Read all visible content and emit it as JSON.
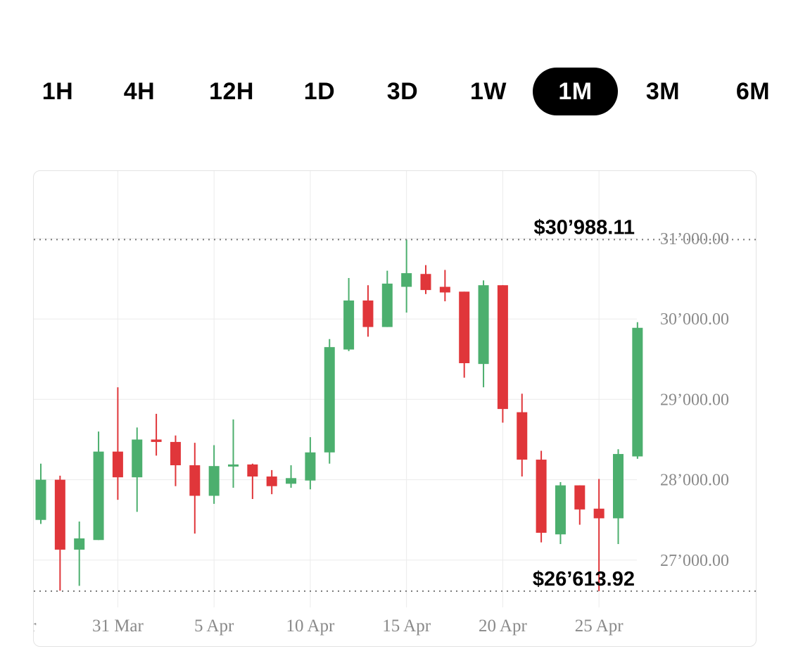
{
  "timeframes": {
    "items": [
      {
        "label": "1H",
        "active": false
      },
      {
        "label": "4H",
        "active": false
      },
      {
        "label": "12H",
        "active": false
      },
      {
        "label": "1D",
        "active": false
      },
      {
        "label": "3D",
        "active": false
      },
      {
        "label": "1W",
        "active": false
      },
      {
        "label": "1M",
        "active": true
      },
      {
        "label": "3M",
        "active": false
      },
      {
        "label": "6M",
        "active": false
      }
    ]
  },
  "colors": {
    "up": "#4caf6e",
    "down": "#e0363a",
    "grid": "#ebebeb",
    "active_tab_bg": "#000000"
  },
  "chart_data": {
    "type": "candlestick",
    "x_tick_labels": [
      "Mar",
      "31 Mar",
      "5 Apr",
      "10 Apr",
      "15 Apr",
      "20 Apr",
      "25 Apr"
    ],
    "y_tick_labels": [
      "31’000.00",
      "30’000.00",
      "29’000.00",
      "28’000.00",
      "27’000.00"
    ],
    "y_ticks": [
      31000,
      30000,
      29000,
      28000,
      27000
    ],
    "ylim": [
      26250,
      31750
    ],
    "high_label": "$30’988.11",
    "high_value": 30988.11,
    "low_label": "$26’613.92",
    "low_value": 26613.92,
    "candles": [
      {
        "date": "2023-03-27",
        "open": 27500,
        "high": 28200,
        "low": 27450,
        "close": 28000
      },
      {
        "date": "2023-03-28",
        "open": 28000,
        "high": 28050,
        "low": 26620,
        "close": 27130
      },
      {
        "date": "2023-03-29",
        "open": 27130,
        "high": 27480,
        "low": 26680,
        "close": 27270
      },
      {
        "date": "2023-03-30",
        "open": 27250,
        "high": 28600,
        "low": 27250,
        "close": 28350
      },
      {
        "date": "2023-03-31",
        "open": 28350,
        "high": 29150,
        "low": 27750,
        "close": 28030
      },
      {
        "date": "2023-04-01",
        "open": 28030,
        "high": 28650,
        "low": 27600,
        "close": 28500
      },
      {
        "date": "2023-04-02",
        "open": 28500,
        "high": 28820,
        "low": 28300,
        "close": 28470
      },
      {
        "date": "2023-04-03",
        "open": 28470,
        "high": 28550,
        "low": 27920,
        "close": 28180
      },
      {
        "date": "2023-04-04",
        "open": 28180,
        "high": 28460,
        "low": 27330,
        "close": 27800
      },
      {
        "date": "2023-04-05",
        "open": 27800,
        "high": 28430,
        "low": 27700,
        "close": 28170
      },
      {
        "date": "2023-04-06",
        "open": 28170,
        "high": 28750,
        "low": 27900,
        "close": 28190
      },
      {
        "date": "2023-04-07",
        "open": 28190,
        "high": 28200,
        "low": 27760,
        "close": 28040
      },
      {
        "date": "2023-04-08",
        "open": 28040,
        "high": 28120,
        "low": 27820,
        "close": 27920
      },
      {
        "date": "2023-04-09",
        "open": 27950,
        "high": 28180,
        "low": 27900,
        "close": 28020
      },
      {
        "date": "2023-04-10",
        "open": 27990,
        "high": 28530,
        "low": 27880,
        "close": 28340
      },
      {
        "date": "2023-04-11",
        "open": 28340,
        "high": 29750,
        "low": 28200,
        "close": 29650
      },
      {
        "date": "2023-04-12",
        "open": 29620,
        "high": 30510,
        "low": 29600,
        "close": 30230
      },
      {
        "date": "2023-04-13",
        "open": 30230,
        "high": 30420,
        "low": 29780,
        "close": 29900
      },
      {
        "date": "2023-04-14",
        "open": 29900,
        "high": 30600,
        "low": 29900,
        "close": 30440
      },
      {
        "date": "2023-04-15",
        "open": 30400,
        "high": 30988.11,
        "low": 30080,
        "close": 30570
      },
      {
        "date": "2023-04-16",
        "open": 30560,
        "high": 30670,
        "low": 30310,
        "close": 30360
      },
      {
        "date": "2023-04-17",
        "open": 30400,
        "high": 30610,
        "low": 30220,
        "close": 30330
      },
      {
        "date": "2023-04-18",
        "open": 30340,
        "high": 30340,
        "low": 29270,
        "close": 29450
      },
      {
        "date": "2023-04-19",
        "open": 29440,
        "high": 30480,
        "low": 29150,
        "close": 30420
      },
      {
        "date": "2023-04-20",
        "open": 30420,
        "high": 30420,
        "low": 28710,
        "close": 28880
      },
      {
        "date": "2023-04-21",
        "open": 28840,
        "high": 29070,
        "low": 28040,
        "close": 28250
      },
      {
        "date": "2023-04-22",
        "open": 28250,
        "high": 28360,
        "low": 27220,
        "close": 27340
      },
      {
        "date": "2023-04-23",
        "open": 27320,
        "high": 27970,
        "low": 27200,
        "close": 27930
      },
      {
        "date": "2023-04-24",
        "open": 27930,
        "high": 27930,
        "low": 27440,
        "close": 27630
      },
      {
        "date": "2023-04-25",
        "open": 27640,
        "high": 28010,
        "low": 26613.92,
        "close": 27520
      },
      {
        "date": "2023-04-26",
        "open": 27520,
        "high": 28380,
        "low": 27200,
        "close": 28320
      },
      {
        "date": "2023-04-27",
        "open": 28290,
        "high": 29960,
        "low": 28260,
        "close": 29890
      }
    ]
  }
}
